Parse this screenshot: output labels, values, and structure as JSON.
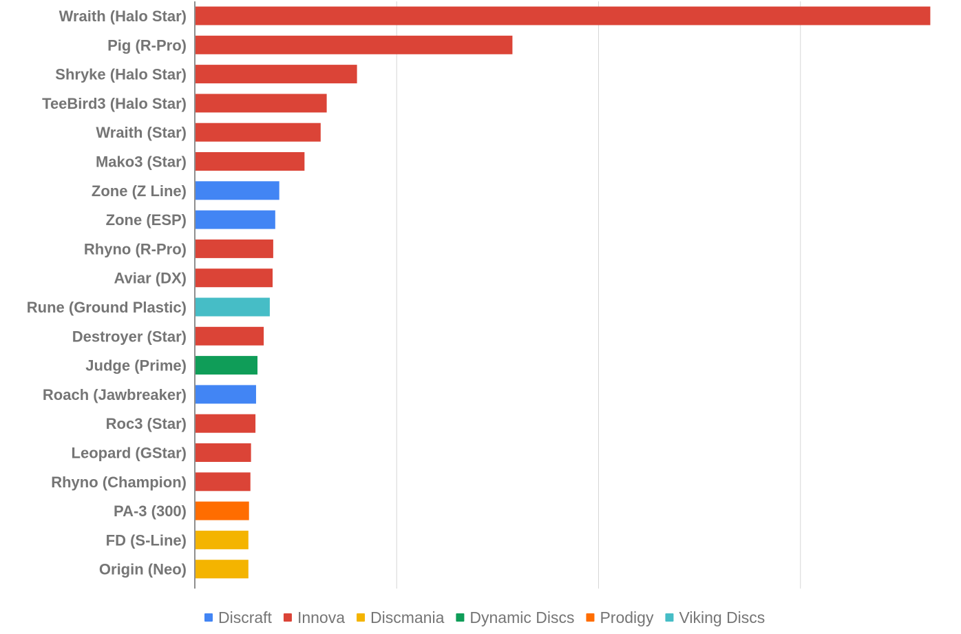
{
  "chart_data": {
    "type": "bar",
    "orientation": "horizontal",
    "categories": [
      "Wraith (Halo Star)",
      "Pig (R-Pro)",
      "Shryke (Halo Star)",
      "TeeBird3 (Halo Star)",
      "Wraith (Star)",
      "Mako3 (Star)",
      "Zone (Z Line)",
      "Zone (ESP)",
      "Rhyno (R-Pro)",
      "Aviar (DX)",
      "Rune (Ground Plastic)",
      "Destroyer (Star)",
      "Judge (Prime)",
      "Roach (Jawbreaker)",
      "Roc3 (Star)",
      "Leopard (GStar)",
      "Rhyno (Champion)",
      "PA-3 (300)",
      "FD (S-Line)",
      "Origin (Neo)"
    ],
    "values": [
      364,
      157,
      80,
      65,
      62,
      54,
      41.5,
      39.5,
      38.5,
      38.2,
      36.8,
      33.8,
      30.7,
      30,
      29.7,
      27.5,
      27.2,
      26.5,
      26.2,
      26.2
    ],
    "brands": [
      "Innova",
      "Innova",
      "Innova",
      "Innova",
      "Innova",
      "Innova",
      "Discraft",
      "Discraft",
      "Innova",
      "Innova",
      "Viking Discs",
      "Innova",
      "Dynamic Discs",
      "Discraft",
      "Innova",
      "Innova",
      "Innova",
      "Prodigy",
      "Discmania",
      "Discmania"
    ],
    "legend": [
      {
        "name": "Discraft",
        "color": "#4285f4"
      },
      {
        "name": "Innova",
        "color": "#db4437"
      },
      {
        "name": "Discmania",
        "color": "#f4b400"
      },
      {
        "name": "Dynamic Discs",
        "color": "#0f9d58"
      },
      {
        "name": "Prodigy",
        "color": "#ff6d00"
      },
      {
        "name": "Viking Discs",
        "color": "#46bdc6"
      }
    ],
    "xlim": [
      0,
      370
    ],
    "x_gridlines": [
      0,
      100,
      200,
      300
    ],
    "x_tick_labels_shown": false,
    "grid": true,
    "legend_position": "bottom",
    "title": "",
    "xlabel": "",
    "ylabel": ""
  }
}
